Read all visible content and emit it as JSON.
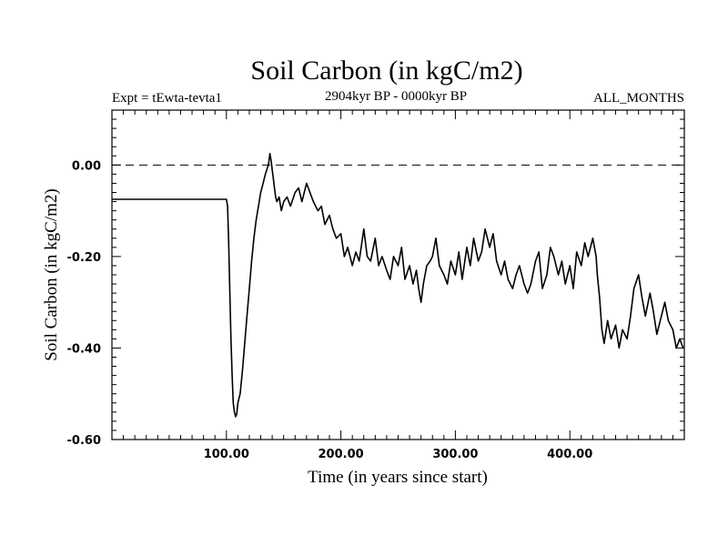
{
  "chart_data": {
    "type": "line",
    "title": "Soil Carbon (in kgC/m2)",
    "subtitle": "2904kyr BP - 0000kyr BP",
    "left_label": "Expt = tEwta-tevta1",
    "right_label": "ALL_MONTHS",
    "xlabel": "Time (in years since start)",
    "ylabel": "Soil Carbon (in kgC/m2)",
    "xlim": [
      0,
      500
    ],
    "ylim": [
      -0.6,
      0.12
    ],
    "x_ticks": [
      {
        "value": 100,
        "label": "100.00"
      },
      {
        "value": 200,
        "label": "200.00"
      },
      {
        "value": 300,
        "label": "300.00"
      },
      {
        "value": 400,
        "label": "400.00"
      }
    ],
    "y_ticks": [
      {
        "value": 0.0,
        "label": "0.00"
      },
      {
        "value": -0.2,
        "label": "-0.20"
      },
      {
        "value": -0.4,
        "label": "-0.40"
      },
      {
        "value": -0.6,
        "label": "-0.60"
      }
    ],
    "reference_line": {
      "y": 0.0,
      "style": "dashed"
    },
    "series": [
      {
        "name": "Soil Carbon",
        "x": [
          0,
          99,
          100,
          101,
          102,
          103,
          104,
          105,
          106,
          107,
          108,
          109,
          110,
          112,
          114,
          116,
          118,
          120,
          122,
          124,
          126,
          128,
          130,
          132,
          134,
          136,
          137,
          138,
          139,
          140,
          141,
          142,
          143,
          144,
          146,
          148,
          150,
          153,
          156,
          160,
          163,
          166,
          170,
          173,
          176,
          180,
          183,
          186,
          190,
          193,
          196,
          200,
          203,
          206,
          210,
          213,
          216,
          220,
          223,
          226,
          230,
          233,
          236,
          240,
          243,
          246,
          250,
          253,
          256,
          260,
          263,
          266,
          268,
          270,
          272,
          275,
          278,
          280,
          283,
          286,
          290,
          293,
          296,
          300,
          303,
          306,
          310,
          313,
          316,
          320,
          323,
          326,
          330,
          333,
          336,
          340,
          343,
          346,
          350,
          353,
          356,
          360,
          363,
          366,
          370,
          373,
          376,
          380,
          383,
          386,
          390,
          393,
          396,
          400,
          403,
          406,
          410,
          413,
          416,
          420,
          423,
          424,
          426,
          428,
          430,
          433,
          436,
          440,
          443,
          446,
          450,
          453,
          456,
          460,
          463,
          466,
          470,
          473,
          476,
          480,
          483,
          486,
          490,
          493,
          496,
          499
        ],
        "y": [
          -0.075,
          -0.075,
          -0.075,
          -0.09,
          -0.17,
          -0.28,
          -0.38,
          -0.46,
          -0.52,
          -0.54,
          -0.55,
          -0.545,
          -0.52,
          -0.5,
          -0.45,
          -0.39,
          -0.33,
          -0.27,
          -0.21,
          -0.16,
          -0.12,
          -0.09,
          -0.06,
          -0.04,
          -0.02,
          -0.005,
          0.005,
          0.025,
          0.01,
          -0.01,
          -0.03,
          -0.05,
          -0.07,
          -0.08,
          -0.07,
          -0.1,
          -0.08,
          -0.07,
          -0.09,
          -0.06,
          -0.05,
          -0.08,
          -0.04,
          -0.06,
          -0.08,
          -0.1,
          -0.09,
          -0.13,
          -0.11,
          -0.14,
          -0.16,
          -0.15,
          -0.2,
          -0.18,
          -0.22,
          -0.19,
          -0.21,
          -0.14,
          -0.2,
          -0.21,
          -0.16,
          -0.22,
          -0.2,
          -0.23,
          -0.25,
          -0.2,
          -0.22,
          -0.18,
          -0.25,
          -0.22,
          -0.26,
          -0.23,
          -0.27,
          -0.3,
          -0.26,
          -0.22,
          -0.21,
          -0.2,
          -0.16,
          -0.22,
          -0.24,
          -0.26,
          -0.21,
          -0.24,
          -0.19,
          -0.25,
          -0.18,
          -0.22,
          -0.16,
          -0.21,
          -0.19,
          -0.14,
          -0.18,
          -0.15,
          -0.21,
          -0.24,
          -0.21,
          -0.25,
          -0.27,
          -0.24,
          -0.22,
          -0.26,
          -0.28,
          -0.26,
          -0.21,
          -0.19,
          -0.27,
          -0.24,
          -0.18,
          -0.2,
          -0.24,
          -0.21,
          -0.26,
          -0.22,
          -0.27,
          -0.19,
          -0.22,
          -0.17,
          -0.2,
          -0.16,
          -0.2,
          -0.24,
          -0.29,
          -0.36,
          -0.39,
          -0.34,
          -0.38,
          -0.35,
          -0.4,
          -0.36,
          -0.38,
          -0.33,
          -0.27,
          -0.24,
          -0.29,
          -0.33,
          -0.28,
          -0.32,
          -0.37,
          -0.33,
          -0.3,
          -0.34,
          -0.36,
          -0.4,
          -0.38,
          -0.4
        ]
      }
    ]
  }
}
